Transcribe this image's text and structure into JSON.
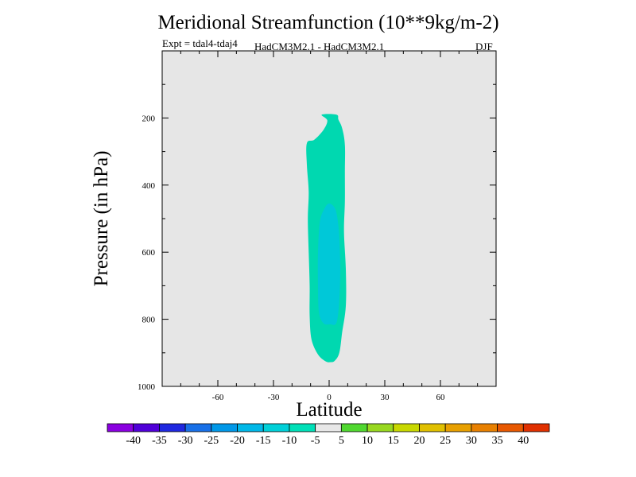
{
  "chart_data": {
    "type": "contour",
    "title": "Meridional Streamfunction (10**9kg/m-2)",
    "subtitle_left": "Expt = tdal4-tdaj4",
    "subtitle_center": "HadCM3M2.1 - HadCM3M2.1",
    "subtitle_right": "DJF",
    "xlabel": "Latitude",
    "ylabel": "Pressure (in hPa)",
    "xlim": [
      -90,
      90
    ],
    "ylim": [
      1000,
      0
    ],
    "x_ticks": [
      -60,
      -30,
      0,
      30,
      60
    ],
    "y_ticks": [
      200,
      400,
      600,
      800,
      1000
    ],
    "background_color": "#e6e6e6",
    "contour_levels": [
      {
        "range": [
          -10,
          -5
        ],
        "color": "#00d8b0",
        "outline": [
          [
            -4,
            190
          ],
          [
            -1,
            207
          ],
          [
            -3,
            235
          ],
          [
            -8,
            265
          ],
          [
            -12,
            275
          ],
          [
            -12,
            340
          ],
          [
            -11,
            420
          ],
          [
            -11.5,
            500
          ],
          [
            -11,
            600
          ],
          [
            -10.5,
            700
          ],
          [
            -10.5,
            790
          ],
          [
            -9.5,
            860
          ],
          [
            -6,
            905
          ],
          [
            -2,
            925
          ],
          [
            0.5,
            928
          ],
          [
            3,
            924
          ],
          [
            5.5,
            900
          ],
          [
            7,
            840
          ],
          [
            9,
            760
          ],
          [
            9,
            650
          ],
          [
            8,
            540
          ],
          [
            8.5,
            450
          ],
          [
            8.5,
            360
          ],
          [
            8.5,
            280
          ],
          [
            7,
            230
          ],
          [
            5,
            205
          ],
          [
            4,
            190
          ]
        ]
      },
      {
        "range": [
          -15,
          -10
        ],
        "color": "#00c8d8",
        "outline": [
          [
            0,
            455
          ],
          [
            -2.5,
            470
          ],
          [
            -5,
            510
          ],
          [
            -6,
            600
          ],
          [
            -6,
            700
          ],
          [
            -5.5,
            780
          ],
          [
            -3,
            812
          ],
          [
            0.5,
            815
          ],
          [
            4,
            810
          ],
          [
            5.5,
            740
          ],
          [
            6,
            650
          ],
          [
            5.5,
            560
          ],
          [
            4.5,
            500
          ],
          [
            3,
            468
          ]
        ]
      }
    ],
    "colorbar": {
      "labels": [
        "-40",
        "-35",
        "-30",
        "-25",
        "-20",
        "-15",
        "-10",
        "-5",
        "5",
        "10",
        "15",
        "20",
        "25",
        "30",
        "35",
        "40"
      ],
      "colors": [
        "#8a00e0",
        "#5000d8",
        "#1f28e0",
        "#1870e8",
        "#0098e8",
        "#00b8e8",
        "#00d0d8",
        "#00e0b8",
        "#e8e8e8",
        "#50d830",
        "#98d820",
        "#c8d800",
        "#e0c000",
        "#e8a000",
        "#e88000",
        "#e85800",
        "#e03000"
      ]
    }
  }
}
